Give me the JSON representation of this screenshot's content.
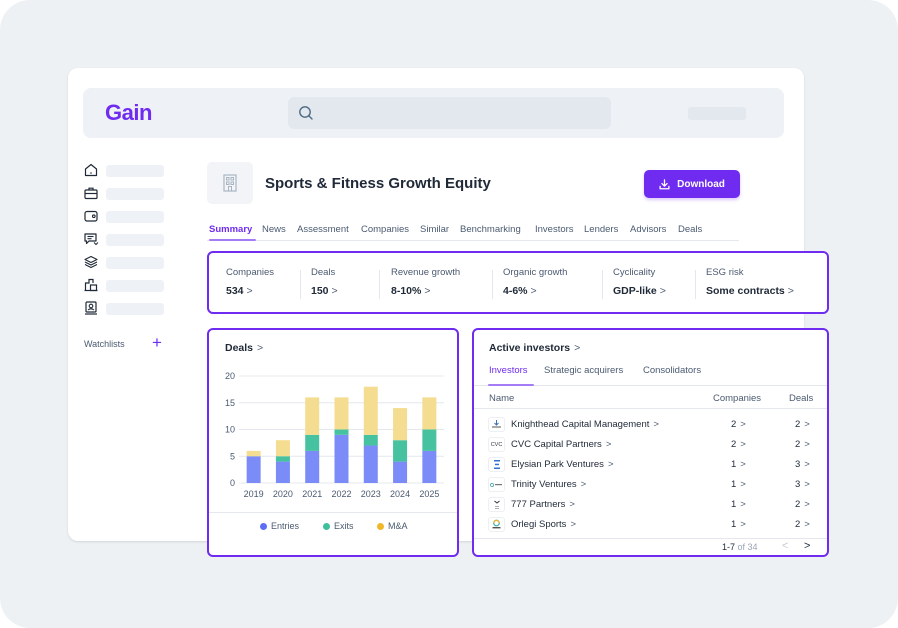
{
  "header": {
    "logo": "Gain",
    "search_placeholder": ""
  },
  "sidebar": {
    "items": [
      {
        "icon": "home-icon"
      },
      {
        "icon": "briefcase-icon"
      },
      {
        "icon": "wallet-icon"
      },
      {
        "icon": "message-icon"
      },
      {
        "icon": "layers-icon"
      },
      {
        "icon": "building-icon"
      },
      {
        "icon": "user-badge-icon"
      }
    ],
    "watchlists_label": "Watchlists",
    "watchlists_add": "+"
  },
  "page": {
    "title": "Sports & Fitness Growth Equity",
    "download_label": "Download",
    "tabs": [
      "Summary",
      "News",
      "Assessment",
      "Companies",
      "Similar",
      "Benchmarking",
      "Investors",
      "Lenders",
      "Advisors",
      "Deals"
    ],
    "active_tab": "Summary"
  },
  "metrics": [
    {
      "label": "Companies",
      "value": "534"
    },
    {
      "label": "Deals",
      "value": "150"
    },
    {
      "label": "Revenue growth",
      "value": "8-10%"
    },
    {
      "label": "Organic growth",
      "value": "4-6%"
    },
    {
      "label": "Cyclicality",
      "value": "GDP-like"
    },
    {
      "label": "ESG risk",
      "value": "Some contracts"
    }
  ],
  "chevron": ">",
  "deals_panel": {
    "title": "Deals"
  },
  "chart_data": {
    "type": "bar",
    "stacked": true,
    "title": "Deals",
    "xlabel": "",
    "ylabel": "",
    "categories": [
      "2019",
      "2020",
      "2021",
      "2022",
      "2023",
      "2024",
      "2025"
    ],
    "series": [
      {
        "name": "Entries",
        "color": "#7b8cf8",
        "values": [
          5,
          4,
          6,
          9,
          7,
          4,
          6
        ]
      },
      {
        "name": "Exits",
        "color": "#46c2a0",
        "values": [
          0,
          1,
          3,
          1,
          2,
          4,
          4
        ]
      },
      {
        "name": "M&A",
        "color": "#f4dc90",
        "values": [
          1,
          3,
          7,
          6,
          9,
          6,
          6
        ]
      }
    ],
    "legend_colors": [
      "#5b6ef5",
      "#3fbf9a",
      "#f0b829"
    ],
    "ylim": [
      0,
      20
    ],
    "yticks": [
      "0",
      "5",
      "10",
      "15",
      "20"
    ],
    "grid": true,
    "legend_position": "bottom"
  },
  "investors_panel": {
    "title": "Active investors",
    "tabs": [
      "Investors",
      "Strategic acquirers",
      "Consolidators"
    ],
    "active_tab": "Investors",
    "columns": [
      "Name",
      "Companies",
      "Deals"
    ],
    "rows": [
      {
        "name": "Knighthead Capital Management",
        "logo": "",
        "companies": "2",
        "deals": "2"
      },
      {
        "name": "CVC Capital Partners",
        "logo": "CVC",
        "companies": "2",
        "deals": "2"
      },
      {
        "name": "Elysian Park Ventures",
        "logo": "",
        "companies": "1",
        "deals": "3"
      },
      {
        "name": "Trinity Ventures",
        "logo": "",
        "companies": "1",
        "deals": "3"
      },
      {
        "name": "777 Partners",
        "logo": "",
        "companies": "1",
        "deals": "2"
      },
      {
        "name": "Orlegi Sports",
        "logo": "",
        "companies": "1",
        "deals": "2"
      }
    ],
    "pager_range": "1-7",
    "pager_total": "of 34",
    "prev": "<",
    "next": ">"
  },
  "colors": {
    "accent": "#6f2cf0",
    "text": "#1f2937",
    "muted": "#4b5a70"
  }
}
